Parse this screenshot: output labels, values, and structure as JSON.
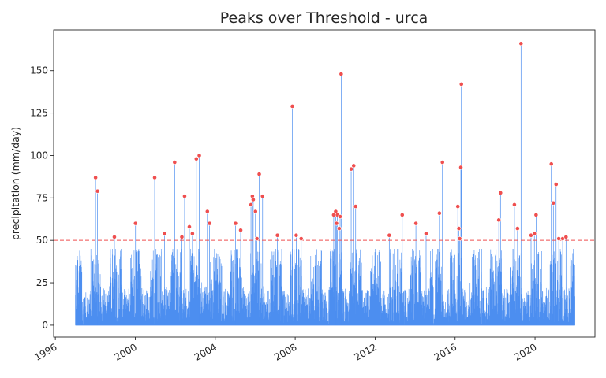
{
  "chart_data": {
    "type": "line",
    "title": "Peaks over Threshold - urca",
    "xlabel": "",
    "ylabel": "precipitation (mm/day)",
    "x_ticks": [
      "1996",
      "2000",
      "2004",
      "2008",
      "2012",
      "2016",
      "2020"
    ],
    "y_ticks": [
      0,
      25,
      50,
      75,
      100,
      125,
      150
    ],
    "xlim": [
      "1995-12-01",
      "2022-12-31"
    ],
    "ylim": [
      -7,
      174
    ],
    "threshold": 50,
    "grid": false,
    "colors": {
      "series": "#4c8ef0",
      "peaks": "#ef4f4f",
      "threshold": "#ef4f4f"
    },
    "series": [
      {
        "style": "line",
        "x_range": [
          "1997-01-01",
          "2022-01-01"
        ],
        "typical_max": 45
      },
      {
        "style": "scatter",
        "points": [
          {
            "x": "1998-01-05",
            "y": 87
          },
          {
            "x": "1998-02-10",
            "y": 79
          },
          {
            "x": "1998-12-15",
            "y": 52
          },
          {
            "x": "2000-01-05",
            "y": 60
          },
          {
            "x": "2000-12-20",
            "y": 87
          },
          {
            "x": "2001-06-20",
            "y": 54
          },
          {
            "x": "2001-12-20",
            "y": 96
          },
          {
            "x": "2002-05-01",
            "y": 52
          },
          {
            "x": "2002-06-20",
            "y": 76
          },
          {
            "x": "2002-09-15",
            "y": 58
          },
          {
            "x": "2002-11-10",
            "y": 54
          },
          {
            "x": "2003-01-20",
            "y": 98
          },
          {
            "x": "2003-03-15",
            "y": 100
          },
          {
            "x": "2003-08-10",
            "y": 67
          },
          {
            "x": "2003-09-20",
            "y": 60
          },
          {
            "x": "2005-01-05",
            "y": 60
          },
          {
            "x": "2005-04-10",
            "y": 56
          },
          {
            "x": "2005-10-15",
            "y": 71
          },
          {
            "x": "2005-11-10",
            "y": 76
          },
          {
            "x": "2005-11-25",
            "y": 74
          },
          {
            "x": "2006-01-05",
            "y": 67
          },
          {
            "x": "2006-02-01",
            "y": 51
          },
          {
            "x": "2006-03-15",
            "y": 89
          },
          {
            "x": "2006-05-15",
            "y": 76
          },
          {
            "x": "2007-02-10",
            "y": 53
          },
          {
            "x": "2007-11-10",
            "y": 129
          },
          {
            "x": "2008-01-20",
            "y": 53
          },
          {
            "x": "2008-04-20",
            "y": 51
          },
          {
            "x": "2009-12-05",
            "y": 65
          },
          {
            "x": "2010-01-10",
            "y": 67
          },
          {
            "x": "2010-01-25",
            "y": 60
          },
          {
            "x": "2010-02-10",
            "y": 65
          },
          {
            "x": "2010-03-15",
            "y": 57
          },
          {
            "x": "2010-04-01",
            "y": 64
          },
          {
            "x": "2010-04-20",
            "y": 148
          },
          {
            "x": "2010-10-20",
            "y": 92
          },
          {
            "x": "2010-12-05",
            "y": 94
          },
          {
            "x": "2011-01-10",
            "y": 70
          },
          {
            "x": "2012-09-15",
            "y": 53
          },
          {
            "x": "2013-05-10",
            "y": 65
          },
          {
            "x": "2014-01-15",
            "y": 60
          },
          {
            "x": "2014-07-20",
            "y": 54
          },
          {
            "x": "2015-03-20",
            "y": 66
          },
          {
            "x": "2015-05-15",
            "y": 96
          },
          {
            "x": "2016-02-20",
            "y": 70
          },
          {
            "x": "2016-03-10",
            "y": 57
          },
          {
            "x": "2016-03-25",
            "y": 51
          },
          {
            "x": "2016-04-15",
            "y": 93
          },
          {
            "x": "2016-04-25",
            "y": 142
          },
          {
            "x": "2018-03-10",
            "y": 62
          },
          {
            "x": "2018-04-10",
            "y": 78
          },
          {
            "x": "2018-12-20",
            "y": 71
          },
          {
            "x": "2019-02-15",
            "y": 57
          },
          {
            "x": "2019-04-20",
            "y": 166
          },
          {
            "x": "2019-10-20",
            "y": 53
          },
          {
            "x": "2019-12-20",
            "y": 54
          },
          {
            "x": "2020-01-20",
            "y": 65
          },
          {
            "x": "2020-10-25",
            "y": 95
          },
          {
            "x": "2020-12-01",
            "y": 72
          },
          {
            "x": "2021-01-20",
            "y": 83
          },
          {
            "x": "2021-03-10",
            "y": 51
          },
          {
            "x": "2021-05-20",
            "y": 51
          },
          {
            "x": "2021-07-20",
            "y": 52
          }
        ]
      }
    ]
  }
}
